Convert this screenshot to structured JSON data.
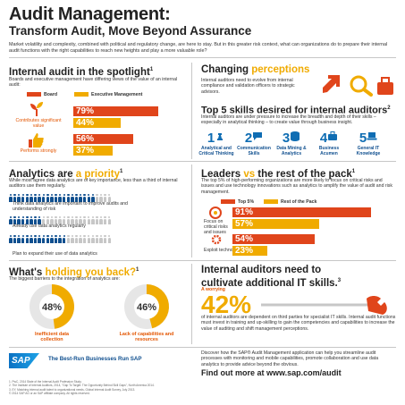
{
  "header": {
    "title": "Audit Management:",
    "subtitle": "Transform Audit, Move Beyond Assurance",
    "intro": "Market volatility and complexity, combined with political and regulatory change, are here to stay. But in this greater risk context, what can organizations do to prepare their internal audit functions with the right capabilities to reach new heights and play a more valuable role?"
  },
  "spotlight": {
    "title_a": "Internal audit ",
    "title_b": "in the spotlight",
    "sup": "1",
    "desc": "Boards and executive management have differing views of the value of an internal audit:",
    "legend_board": "Board",
    "legend_exec": "Executive Management",
    "row1_label": "Contributes significant value",
    "row2_label": "Performs strongly",
    "row1": {
      "board": "79%",
      "exec": "44%",
      "board_value": 79,
      "exec_value": 44
    },
    "row2": {
      "board": "56%",
      "exec": "37%",
      "board_value": 56,
      "exec_value": 37
    }
  },
  "changing": {
    "title_a": "Changing ",
    "title_b": "perceptions",
    "desc": "Internal auditors need to evolve from internal compliance and validation officers to strategic advisors."
  },
  "skills": {
    "title": "Top 5 skills desired for internal auditors",
    "sup": "2",
    "desc": "Internal auditors are under pressure to increase the breadth and depth of their skills – especially in analytical thinking – to create value through business insight.",
    "items": [
      {
        "num": "1",
        "label": "Analytical and Critical Thinking"
      },
      {
        "num": "2",
        "label": "Communication Skills"
      },
      {
        "num": "3",
        "label": "Data Mining & Analytics"
      },
      {
        "num": "4",
        "label": "Business Acumen"
      },
      {
        "num": "5",
        "label": "General IT Knowledge"
      }
    ]
  },
  "analytics": {
    "title_a": "Analytics are ",
    "title_b": "a priority",
    "sup": "1",
    "desc": "While most agree data analytics are of key importance, less than a third of internal auditors use them regularly.",
    "row1_label": "Think data analytics are important to improve audits and understanding of risk",
    "row2_label": "Already use data analytics regularly",
    "row3_label": "Plan to expand their use of data analytics",
    "row1_filled": 21,
    "row2_filled": 8,
    "row3_filled": 14,
    "total_icons": 25
  },
  "leaders": {
    "title_a": "Leaders ",
    "title_b": "vs",
    "title_c": " the rest of the pack",
    "sup": "1",
    "desc": "The top 5% of high-performing organizations are more likely to focus on critical risks and issues and use technology innovations such as analytics to amplify the value of audit and risk management.",
    "legend_top": "Top 5%",
    "legend_rest": "Rest of the Pack",
    "row1_label": "Focus on critical risks and issues",
    "row2_label": "Exploit technology",
    "row1": {
      "top": "91%",
      "rest": "57%",
      "top_value": 91,
      "rest_value": 57
    },
    "row2": {
      "top": "54%",
      "rest": "23%",
      "top_value": 54,
      "rest_value": 23
    }
  },
  "holding": {
    "title_a": "What's ",
    "title_b": "holding you back?",
    "sup": "1",
    "desc": "The biggest barriers to the integration of analytics are:",
    "pie1_value": "48%",
    "pie1_num": 48,
    "pie1_label": "Inefficient data collection",
    "pie2_value": "46%",
    "pie2_num": 46,
    "pie2_label": "Lack of capabilities and resources"
  },
  "cultivate": {
    "title_a": "Internal auditors need to",
    "title_b": "cultivate additional IT skills.",
    "sup": "3",
    "worrying": "A worrying",
    "big": "42%",
    "desc": "of internal auditors are dependent on third parties for specialist IT skills. Internal audit functions must invest in training and up-skilling to gain the competencies and capabilities to increase the value of auditing and shift management perceptions."
  },
  "footer": {
    "logo": "SAP",
    "tagline": "The Best-Run Businesses Run SAP",
    "discover": "Discover how the SAP® Audit Management application can help you streamline audit processes with monitoring and mobile capabilities, promote collaboration and use data analytics to provide advice beyond the obvious.",
    "cta": "Find out more at www.sap.com/audit",
    "notes": [
      "1. PwC, 2014 State of the Internal Audit Profession Study.",
      "2. The Institute of Internal Auditors, 2014, \"Gap To Target: The Opportunity Behind Skill Gaps\", North America 2014.",
      "3. EY, Matching internal audit talent to organizational needs, Global Internal Audit Survey, July 2013.",
      "© 2014 SAP AG or an SAP affiliate company. All rights reserved."
    ]
  },
  "colors": {
    "red": "#e0451b",
    "orange": "#f0ab00",
    "blue": "#0f6db3",
    "gray": "#c7c7c7"
  }
}
